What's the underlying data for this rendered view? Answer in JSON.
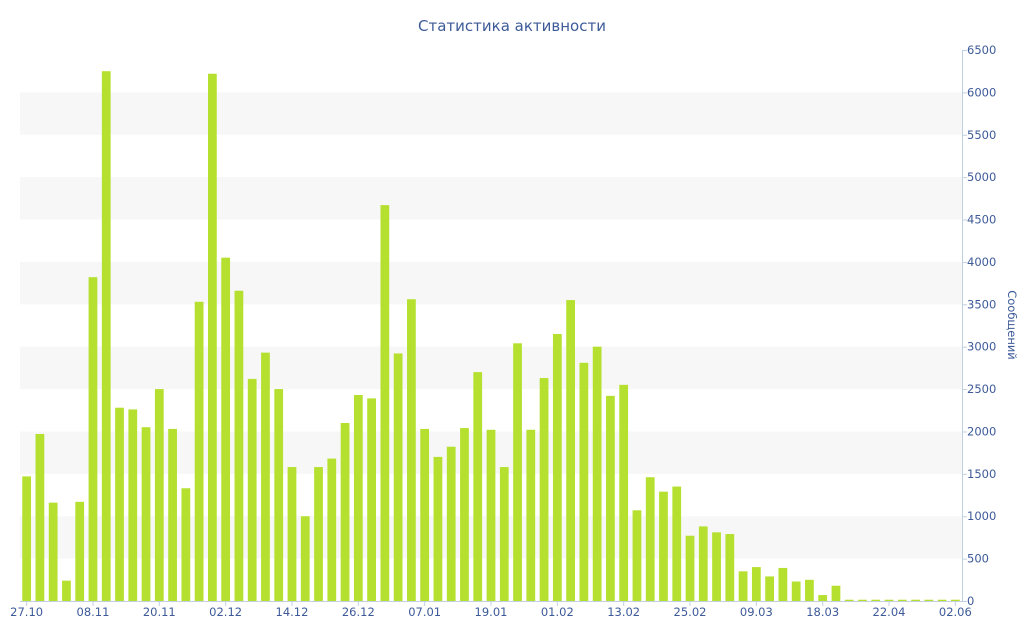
{
  "chart_data": {
    "type": "bar",
    "title": "Статистика активности",
    "ylabel": "Сообщений",
    "xlabel": "",
    "ylim": [
      0,
      6500
    ],
    "y_ticks": [
      0,
      500,
      1000,
      1500,
      2000,
      2500,
      3000,
      3500,
      4000,
      4500,
      5000,
      5500,
      6000,
      6500
    ],
    "x_ticks": [
      "27.10",
      "08.11",
      "20.11",
      "02.12",
      "14.12",
      "26.12",
      "07.01",
      "19.01",
      "01.02",
      "13.02",
      "25.02",
      "09.03",
      "18.03",
      "22.04",
      "02.06"
    ],
    "x_tick_bar_index": [
      0,
      5,
      10,
      15,
      20,
      25,
      30,
      35,
      40,
      45,
      50,
      55,
      60,
      65,
      70
    ],
    "grid": "alternating horizontal bands",
    "y_axis_position": "right",
    "colors": {
      "bar": "#b5e02f",
      "band": "#f7f7f7",
      "text": "#3d5a99",
      "axis": "#c0d0e0"
    },
    "values": [
      1470,
      1970,
      1160,
      240,
      1170,
      3820,
      6250,
      2280,
      2260,
      2050,
      2500,
      2030,
      1330,
      3530,
      6220,
      4050,
      3660,
      2620,
      2930,
      2500,
      1580,
      1000,
      1580,
      1680,
      2100,
      2430,
      2390,
      4670,
      2920,
      3560,
      2030,
      1700,
      1820,
      2040,
      2700,
      2020,
      1580,
      3040,
      2020,
      2630,
      3150,
      3550,
      2810,
      3000,
      2420,
      2550,
      1070,
      1460,
      1290,
      1350,
      770,
      880,
      810,
      790,
      350,
      400,
      290,
      390,
      230,
      250,
      70,
      180,
      15,
      15,
      15,
      15,
      15,
      15,
      15,
      15,
      15
    ]
  }
}
